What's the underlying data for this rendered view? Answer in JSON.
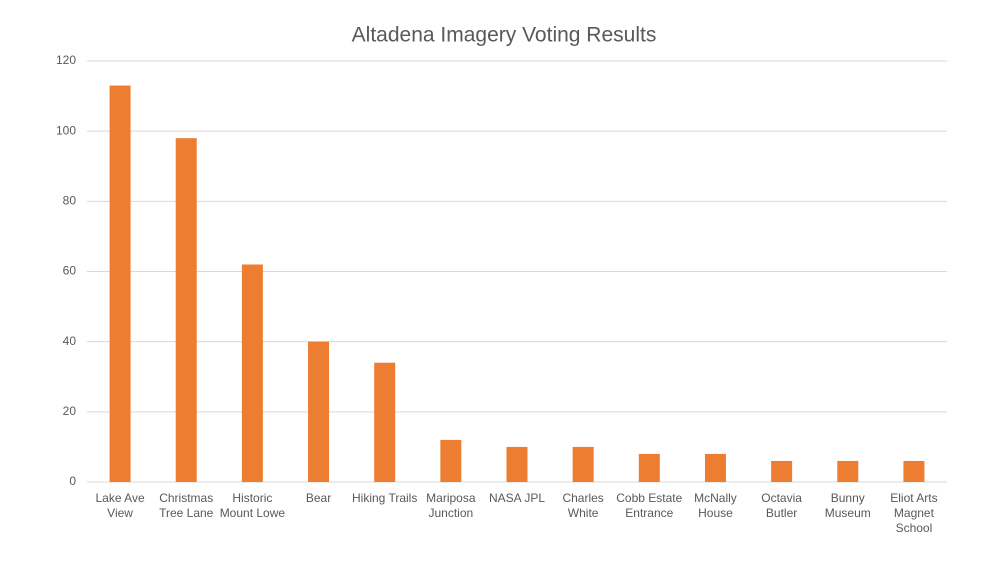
{
  "chart_data": {
    "type": "bar",
    "title": "Altadena Imagery Voting Results",
    "categories": [
      "Lake Ave View",
      "Christmas Tree Lane",
      "Historic Mount Lowe",
      "Bear",
      "Hiking Trails",
      "Mariposa Junction",
      "NASA JPL",
      "Charles White",
      "Cobb Estate Entrance",
      "McNally House",
      "Octavia Butler",
      "Bunny Museum",
      "Eliot Arts Magnet School"
    ],
    "values": [
      113,
      98,
      62,
      40,
      34,
      12,
      10,
      10,
      8,
      8,
      6,
      6,
      6
    ],
    "color": "#ed7d31",
    "ylim": [
      0,
      120
    ],
    "yticks": [
      0,
      20,
      40,
      60,
      80,
      100,
      120
    ],
    "grid": true
  }
}
